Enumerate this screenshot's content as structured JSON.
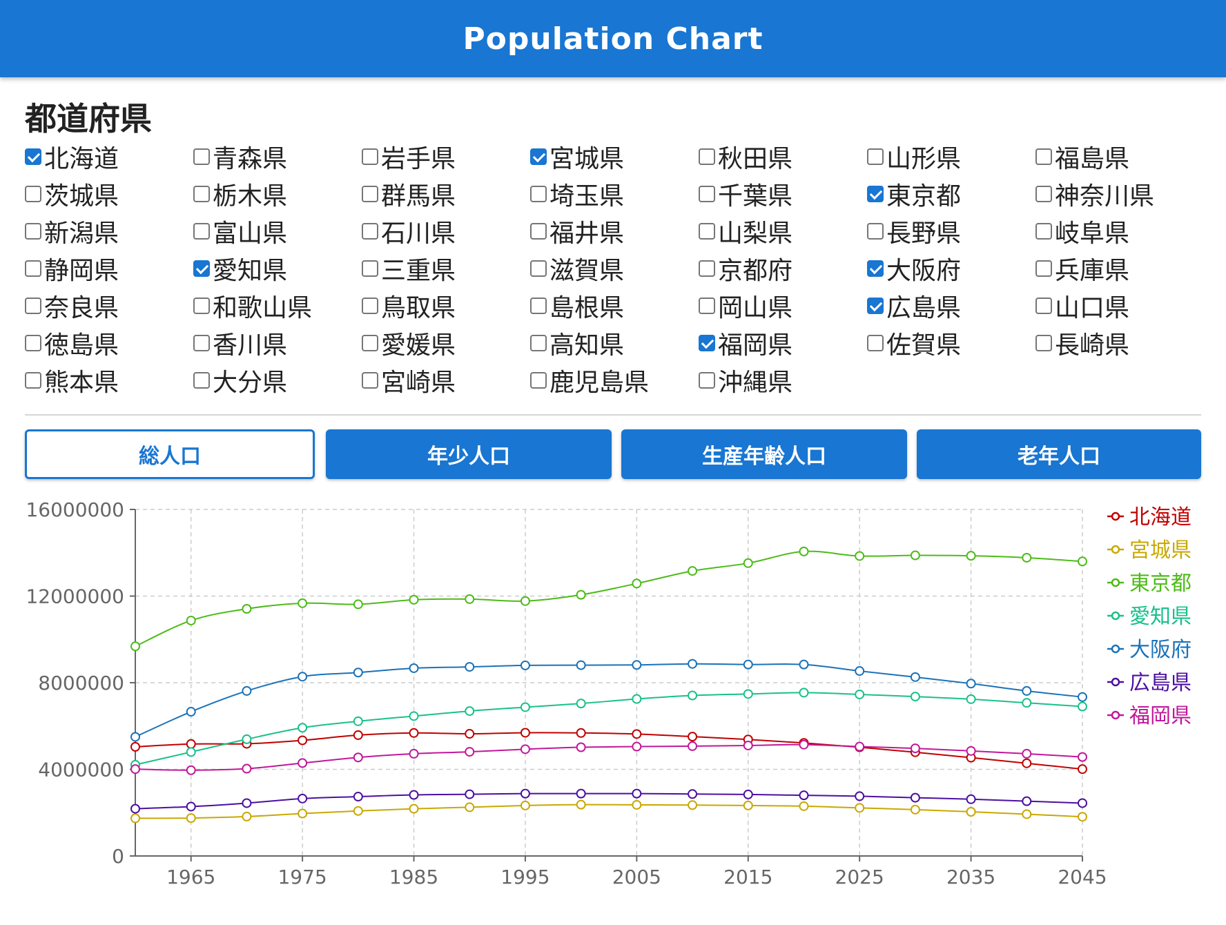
{
  "header": {
    "title": "Population Chart"
  },
  "section_title": "都道府県",
  "prefectures": [
    {
      "label": "北海道",
      "checked": true
    },
    {
      "label": "青森県",
      "checked": false
    },
    {
      "label": "岩手県",
      "checked": false
    },
    {
      "label": "宮城県",
      "checked": true
    },
    {
      "label": "秋田県",
      "checked": false
    },
    {
      "label": "山形県",
      "checked": false
    },
    {
      "label": "福島県",
      "checked": false
    },
    {
      "label": "茨城県",
      "checked": false
    },
    {
      "label": "栃木県",
      "checked": false
    },
    {
      "label": "群馬県",
      "checked": false
    },
    {
      "label": "埼玉県",
      "checked": false
    },
    {
      "label": "千葉県",
      "checked": false
    },
    {
      "label": "東京都",
      "checked": true
    },
    {
      "label": "神奈川県",
      "checked": false
    },
    {
      "label": "新潟県",
      "checked": false
    },
    {
      "label": "富山県",
      "checked": false
    },
    {
      "label": "石川県",
      "checked": false
    },
    {
      "label": "福井県",
      "checked": false
    },
    {
      "label": "山梨県",
      "checked": false
    },
    {
      "label": "長野県",
      "checked": false
    },
    {
      "label": "岐阜県",
      "checked": false
    },
    {
      "label": "静岡県",
      "checked": false
    },
    {
      "label": "愛知県",
      "checked": true
    },
    {
      "label": "三重県",
      "checked": false
    },
    {
      "label": "滋賀県",
      "checked": false
    },
    {
      "label": "京都府",
      "checked": false
    },
    {
      "label": "大阪府",
      "checked": true
    },
    {
      "label": "兵庫県",
      "checked": false
    },
    {
      "label": "奈良県",
      "checked": false
    },
    {
      "label": "和歌山県",
      "checked": false
    },
    {
      "label": "鳥取県",
      "checked": false
    },
    {
      "label": "島根県",
      "checked": false
    },
    {
      "label": "岡山県",
      "checked": false
    },
    {
      "label": "広島県",
      "checked": true
    },
    {
      "label": "山口県",
      "checked": false
    },
    {
      "label": "徳島県",
      "checked": false
    },
    {
      "label": "香川県",
      "checked": false
    },
    {
      "label": "愛媛県",
      "checked": false
    },
    {
      "label": "高知県",
      "checked": false
    },
    {
      "label": "福岡県",
      "checked": true
    },
    {
      "label": "佐賀県",
      "checked": false
    },
    {
      "label": "長崎県",
      "checked": false
    },
    {
      "label": "熊本県",
      "checked": false
    },
    {
      "label": "大分県",
      "checked": false
    },
    {
      "label": "宮崎県",
      "checked": false
    },
    {
      "label": "鹿児島県",
      "checked": false
    },
    {
      "label": "沖縄県",
      "checked": false
    }
  ],
  "tabs": [
    {
      "label": "総人口",
      "active": true
    },
    {
      "label": "年少人口",
      "active": false
    },
    {
      "label": "生産年齢人口",
      "active": false
    },
    {
      "label": "老年人口",
      "active": false
    }
  ],
  "colors": {
    "primary": "#1976d2",
    "grid": "#cccccc",
    "axis": "#666666"
  },
  "chart_data": {
    "type": "line",
    "title": "",
    "xlabel": "",
    "ylabel": "",
    "x": [
      1960,
      1965,
      1970,
      1975,
      1980,
      1985,
      1990,
      1995,
      2000,
      2005,
      2010,
      2015,
      2020,
      2025,
      2030,
      2035,
      2040,
      2045
    ],
    "xticks": [
      "1965",
      "1975",
      "1985",
      "1995",
      "2005",
      "2015",
      "2025",
      "2035",
      "2045"
    ],
    "ylim": [
      0,
      16000000
    ],
    "yticks": [
      "0",
      "4000000",
      "8000000",
      "12000000",
      "16000000"
    ],
    "grid": true,
    "legend_position": "right",
    "series": [
      {
        "name": "北海道",
        "color": "#c00000",
        "values": [
          5040000,
          5170000,
          5180000,
          5340000,
          5580000,
          5680000,
          5640000,
          5690000,
          5680000,
          5630000,
          5510000,
          5380000,
          5220000,
          5020000,
          4790000,
          4540000,
          4280000,
          4010000
        ]
      },
      {
        "name": "宮城県",
        "color": "#c9a800",
        "values": [
          1740000,
          1750000,
          1820000,
          1960000,
          2080000,
          2180000,
          2250000,
          2330000,
          2370000,
          2360000,
          2350000,
          2330000,
          2300000,
          2220000,
          2140000,
          2040000,
          1930000,
          1810000
        ]
      },
      {
        "name": "東京都",
        "color": "#4cbb17",
        "values": [
          9680000,
          10870000,
          11410000,
          11670000,
          11620000,
          11830000,
          11860000,
          11770000,
          12060000,
          12580000,
          13160000,
          13520000,
          14060000,
          13850000,
          13880000,
          13860000,
          13770000,
          13600000
        ]
      },
      {
        "name": "愛知県",
        "color": "#19c08a",
        "values": [
          4210000,
          4800000,
          5390000,
          5920000,
          6220000,
          6460000,
          6690000,
          6870000,
          7040000,
          7250000,
          7410000,
          7480000,
          7540000,
          7460000,
          7360000,
          7240000,
          7070000,
          6900000
        ]
      },
      {
        "name": "大阪府",
        "color": "#1a72b8",
        "values": [
          5500000,
          6660000,
          7620000,
          8280000,
          8470000,
          8670000,
          8730000,
          8800000,
          8810000,
          8820000,
          8870000,
          8840000,
          8840000,
          8540000,
          8260000,
          7960000,
          7620000,
          7340000
        ]
      },
      {
        "name": "広島県",
        "color": "#4b0fa0",
        "values": [
          2180000,
          2280000,
          2440000,
          2650000,
          2740000,
          2820000,
          2850000,
          2880000,
          2880000,
          2880000,
          2860000,
          2840000,
          2800000,
          2760000,
          2690000,
          2620000,
          2530000,
          2440000
        ]
      },
      {
        "name": "福岡県",
        "color": "#c0189a",
        "values": [
          4010000,
          3960000,
          4030000,
          4290000,
          4550000,
          4720000,
          4810000,
          4930000,
          5020000,
          5050000,
          5070000,
          5100000,
          5140000,
          5050000,
          4970000,
          4850000,
          4720000,
          4570000
        ]
      }
    ]
  }
}
